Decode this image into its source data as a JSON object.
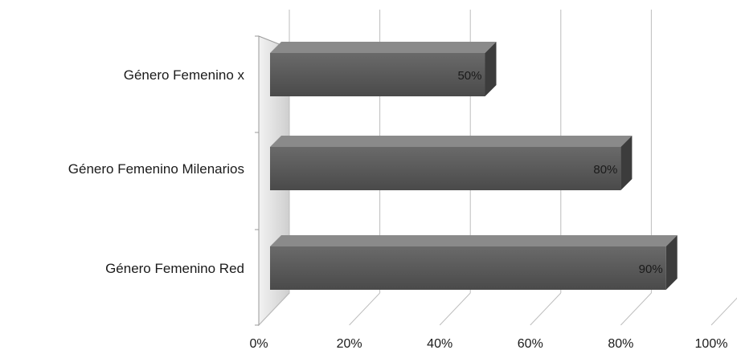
{
  "chart_data": {
    "type": "bar",
    "orientation": "horizontal",
    "style": "3d",
    "categories": [
      "Género Femenino x",
      "Género Femenino Milenarios",
      "Género Femenino Red"
    ],
    "values": [
      50,
      80,
      90
    ],
    "data_labels": [
      "50%",
      "80%",
      "90%"
    ],
    "x_ticks": [
      "0%",
      "20%",
      "40%",
      "60%",
      "80%",
      "100%"
    ],
    "xlim": [
      0,
      100
    ],
    "grid": true,
    "legend": "none",
    "title": "",
    "xlabel": "",
    "ylabel": "",
    "colors": {
      "bar_front": "#5a5a5a",
      "bar_top": "#8a8a8a",
      "bar_side": "#3c3c3c",
      "grid": "#bdbdbd",
      "axis": "#9a9a9a"
    }
  }
}
